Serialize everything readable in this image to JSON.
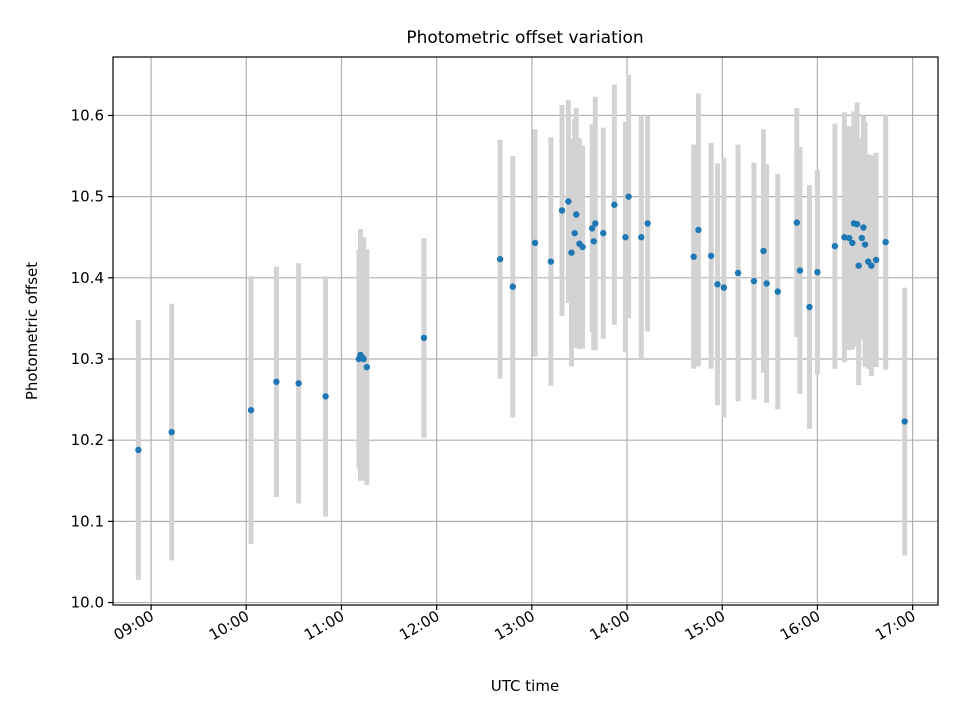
{
  "chart_data": {
    "type": "scatter",
    "title": "Photometric offset variation",
    "xlabel": "UTC time",
    "ylabel": "Photometric offset",
    "x_tick_labels": [
      "09:00",
      "10:00",
      "11:00",
      "12:00",
      "13:00",
      "14:00",
      "15:00",
      "16:00",
      "17:00"
    ],
    "y_tick_labels": [
      "10.0",
      "10.1",
      "10.2",
      "10.3",
      "10.4",
      "10.5",
      "10.6"
    ],
    "xlim": [
      "08:36",
      "17:16"
    ],
    "ylim": [
      9.997,
      10.672
    ],
    "grid": true,
    "colors": {
      "points": "#1f77b4",
      "error_bars": "#d3d3d3",
      "grid": "#b0b0b0"
    },
    "series": [
      {
        "x": [
          "08:52",
          "09:13",
          "10:03",
          "10:19",
          "10:33",
          "10:50",
          "11:11",
          "11:12",
          "11:13",
          "11:14",
          "11:16",
          "11:52",
          "12:40",
          "12:48",
          "13:02",
          "13:12",
          "13:19",
          "13:23",
          "13:25",
          "13:27",
          "13:28",
          "13:30",
          "13:32",
          "13:38",
          "13:39",
          "13:40",
          "13:45",
          "13:52",
          "13:59",
          "14:01",
          "14:09",
          "14:13",
          "14:42",
          "14:45",
          "14:53",
          "14:57",
          "15:01",
          "15:10",
          "15:20",
          "15:26",
          "15:28",
          "15:35",
          "15:47",
          "15:49",
          "15:55",
          "16:00",
          "16:11",
          "16:17",
          "16:20",
          "16:22",
          "16:23",
          "16:25",
          "16:26",
          "16:28",
          "16:29",
          "16:30",
          "16:32",
          "16:34",
          "16:37",
          "16:43"
        ],
        "y": [
          10.188,
          10.21,
          10.237,
          10.272,
          10.27,
          10.254,
          10.3,
          10.305,
          10.302,
          10.3,
          10.29,
          10.326,
          10.423,
          10.389,
          10.443,
          10.42,
          10.483,
          10.494,
          10.431,
          10.455,
          10.478,
          10.442,
          10.438,
          10.461,
          10.445,
          10.467,
          10.455,
          10.49,
          10.45,
          10.5,
          10.45,
          10.467,
          10.426,
          10.459,
          10.427,
          10.392,
          10.388,
          10.406,
          10.396,
          10.433,
          10.393,
          10.383,
          10.468,
          10.409,
          10.364,
          10.407,
          10.439,
          10.45,
          10.449,
          10.443,
          10.467,
          10.466,
          10.415,
          10.449,
          10.462,
          10.441,
          10.42,
          10.415,
          10.422,
          10.444
        ],
        "yerr": [
          0.16,
          0.158,
          0.165,
          0.142,
          0.148,
          0.148,
          0.135,
          0.155,
          0.145,
          0.15,
          0.145,
          0.123,
          0.147,
          0.161,
          0.14,
          0.153,
          0.13,
          0.125,
          0.14,
          0.141,
          0.131,
          0.13,
          0.125,
          0.128,
          0.134,
          0.156,
          0.13,
          0.148,
          0.142,
          0.15,
          0.15,
          0.133,
          0.138,
          0.168,
          0.139,
          0.149,
          0.16,
          0.158,
          0.146,
          0.15,
          0.147,
          0.145,
          0.141,
          0.152,
          0.15,
          0.126,
          0.151,
          0.154,
          0.138,
          0.131,
          0.138,
          0.15,
          0.147,
          0.123,
          0.138,
          0.151,
          0.132,
          0.136,
          0.132,
          0.157
        ]
      }
    ],
    "outlier": {
      "x": "16:55",
      "y": 10.223,
      "yerr": 0.165
    }
  }
}
